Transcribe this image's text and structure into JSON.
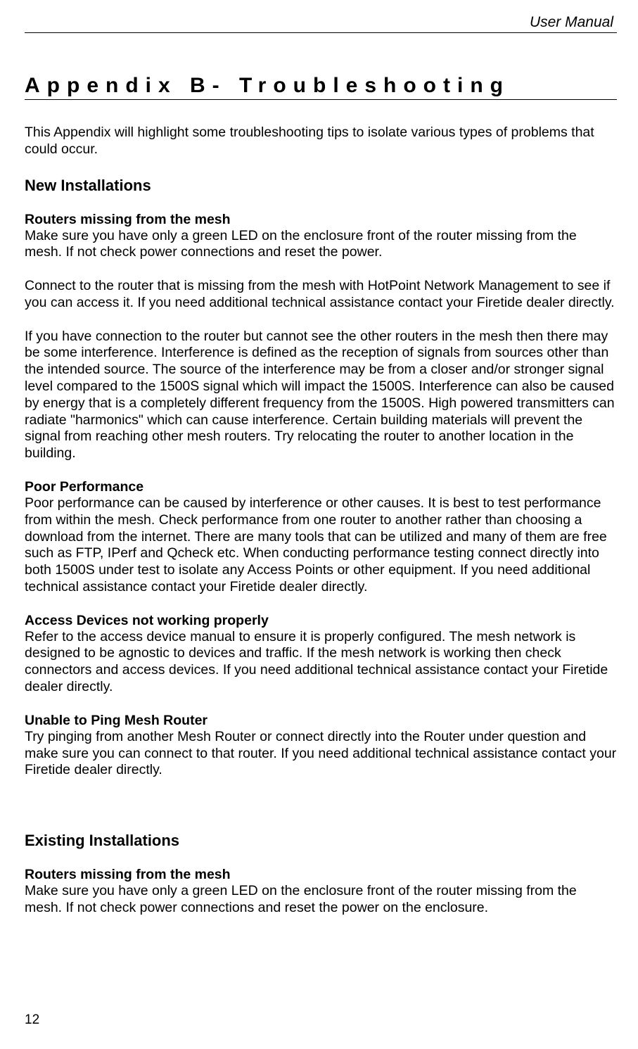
{
  "header": {
    "title": "User Manual"
  },
  "appendix": {
    "title": "Appendix B- Troubleshooting"
  },
  "intro": "This Appendix will highlight some troubleshooting tips to isolate various types of problems that could occur.",
  "section1": {
    "heading": "New Installations",
    "sub1": {
      "title": "Routers missing from the mesh",
      "p1": "Make sure you have only a green LED on the enclosure front of the router missing from the mesh.  If not check power connections and reset the power.",
      "p2": "Connect to the router that is missing from the mesh with HotPoint Network Management to see if you can access it.  If you need additional technical assistance contact your Firetide dealer directly.",
      "p3": "If you have connection to the router but cannot see the other routers in the mesh then there may be some interference.  Interference is defined as the reception of signals from sources other than the intended source.  The source of the interference may be from a closer and/or stronger signal level compared to the 1500S signal which will impact the 1500S.   Interference can also be caused by energy that is a completely different frequency from the 1500S.  High powered transmitters can radiate \"harmonics\" which can cause interference.  Certain building materials will prevent the signal from reaching other mesh routers.  Try relocating the router to another location in the building."
    },
    "sub2": {
      "title": "Poor Performance",
      "p1": "Poor performance can be caused by interference or other causes. It is best to test performance from within the mesh.  Check performance from one router to another rather than choosing a download from the internet.  There are many tools that can be utilized and many of them are free such as FTP, IPerf and Qcheck etc.  When conducting performance testing connect directly into both 1500S under test to isolate any Access Points or other equipment. If you need additional technical assistance contact your Firetide dealer directly."
    },
    "sub3": {
      "title": "Access Devices not working properly",
      "p1": "Refer to the access device manual to ensure it is properly configured.  The mesh network is designed to be agnostic to devices and traffic.  If the mesh network is working then check connectors and access devices.  If you need additional technical assistance contact your Firetide dealer directly."
    },
    "sub4": {
      "title": "Unable to Ping Mesh Router",
      "p1": "Try pinging from another Mesh Router or connect directly into the Router under question and make sure you can connect to that router.  If you need additional technical assistance contact your Firetide dealer directly."
    }
  },
  "section2": {
    "heading": "Existing Installations",
    "sub1": {
      "title": "Routers missing from the mesh",
      "p1": "Make sure you have only a green LED on the enclosure front of the router missing from the mesh.  If not check power connections and reset the power on the enclosure."
    }
  },
  "page_number": "12"
}
